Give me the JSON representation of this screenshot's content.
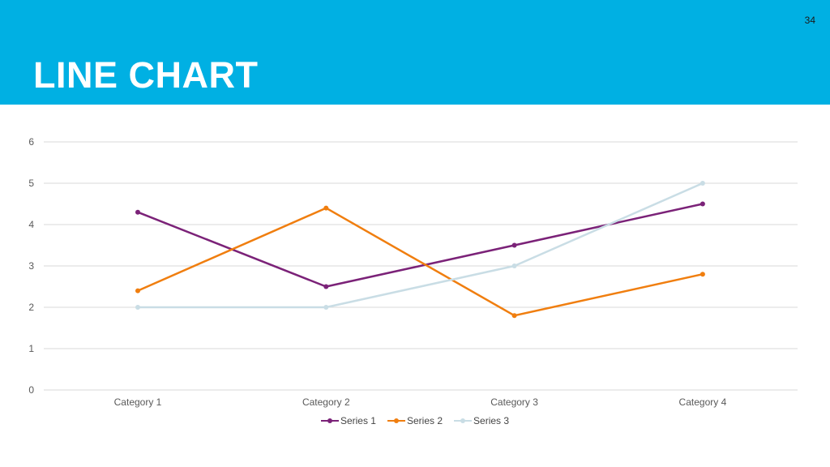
{
  "slide": {
    "number": "34",
    "title": "LINE CHART"
  },
  "chart_data": {
    "type": "line",
    "categories": [
      "Category 1",
      "Category 2",
      "Category 3",
      "Category 4"
    ],
    "series": [
      {
        "name": "Series 1",
        "values": [
          4.3,
          2.5,
          3.5,
          4.5
        ],
        "color": "#7b2278"
      },
      {
        "name": "Series 2",
        "values": [
          2.4,
          4.4,
          1.8,
          2.8
        ],
        "color": "#f07e0f"
      },
      {
        "name": "Series 3",
        "values": [
          2,
          2,
          3,
          5
        ],
        "color": "#c9dde5"
      }
    ],
    "ylim": [
      0,
      6
    ],
    "yticks": [
      "0",
      "1",
      "2",
      "3",
      "4",
      "5",
      "6"
    ],
    "grid": true,
    "legend": "bottom",
    "colors": {
      "gridline": "#d9d9d9",
      "axis_text": "#595959"
    }
  }
}
